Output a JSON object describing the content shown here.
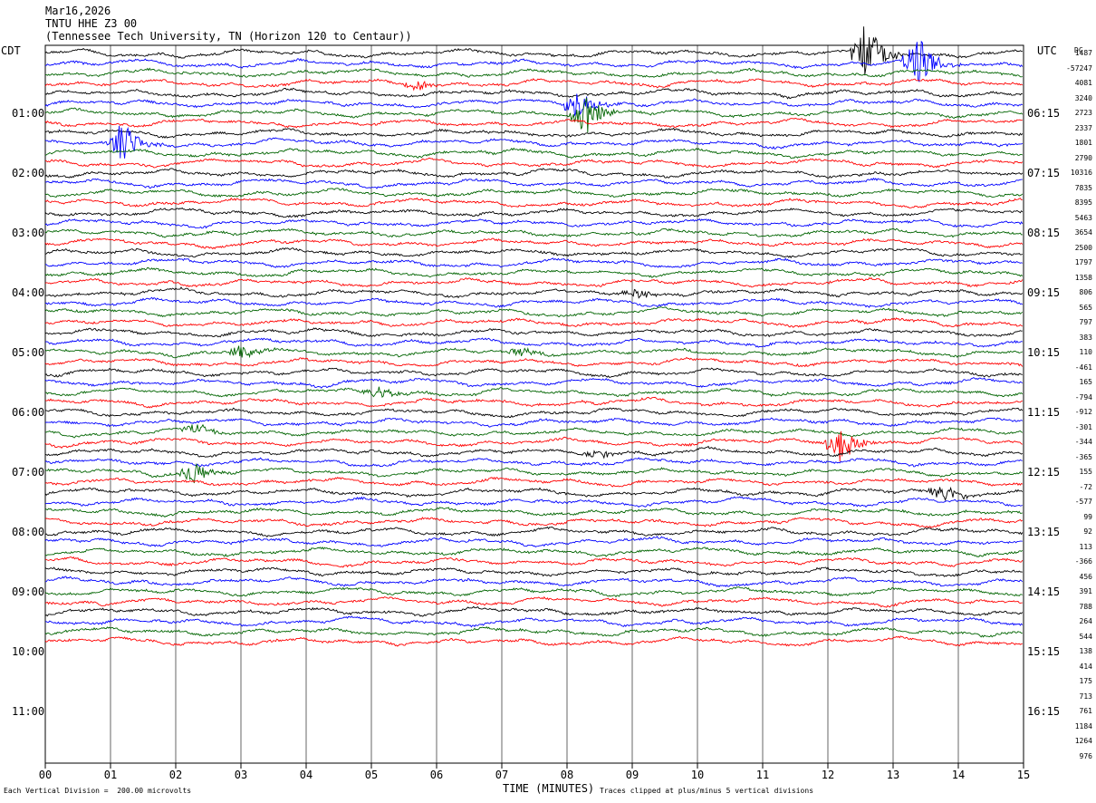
{
  "header": {
    "date": "Mar16,2026",
    "station": "TNTU HHE Z3 00",
    "location": "(Tennessee Tech University, TN (Horizon 120 to Centaur))"
  },
  "axis_labels": {
    "left_tz": "CDT",
    "right_tz": "UTC",
    "dc_header": "DC",
    "xlabel": "TIME (MINUTES)"
  },
  "footer": {
    "scale_note": "Each Vertical Division =  200.00 microvolts",
    "clip_note": "Traces clipped at plus/minus 5 vertical divisions"
  },
  "chart_data": {
    "type": "line",
    "x_ticks": [
      "00",
      "01",
      "02",
      "03",
      "04",
      "05",
      "06",
      "07",
      "08",
      "09",
      "10",
      "11",
      "12",
      "13",
      "14",
      "15"
    ],
    "xlim": [
      0,
      15
    ],
    "row_count": 60,
    "minutes_per_row": 15,
    "color_cycle": [
      "#000000",
      "#0000ff",
      "#006400",
      "#ff0000"
    ],
    "left_hour_labels": [
      "01:00",
      "02:00",
      "03:00",
      "04:00",
      "05:00",
      "06:00",
      "07:00",
      "08:00",
      "09:00",
      "10:00",
      "11:00"
    ],
    "right_hour_labels": [
      "06:15",
      "07:15",
      "08:15",
      "09:15",
      "10:15",
      "11:15",
      "12:15",
      "13:15",
      "14:15",
      "15:15",
      "16:15"
    ],
    "dc_offsets": [
      "1487",
      "-57247",
      "4081",
      "3240",
      "2723",
      "2337",
      "1801",
      "2790",
      "10316",
      "7835",
      "8395",
      "5463",
      "3654",
      "2500",
      "1797",
      "1358",
      "806",
      "565",
      "797",
      "383",
      "110",
      "-461",
      "165",
      "-794",
      "-912",
      "-301",
      "-344",
      "-365",
      "155",
      "-72",
      "-577",
      "99",
      "92",
      "113",
      "-366",
      "456",
      "391",
      "788",
      "264",
      "544",
      "138",
      "414",
      "175",
      "713",
      "761",
      "1184",
      "1264",
      "976"
    ],
    "events": [
      {
        "row": 0,
        "minute": 12.5,
        "amplitude": 6
      },
      {
        "row": 1,
        "minute": 13.3,
        "amplitude": 5
      },
      {
        "row": 3,
        "minute": 5.6,
        "amplitude": 1.5
      },
      {
        "row": 5,
        "minute": 8.1,
        "amplitude": 3
      },
      {
        "row": 6,
        "minute": 8.2,
        "amplitude": 4
      },
      {
        "row": 9,
        "minute": 1.1,
        "amplitude": 5
      },
      {
        "row": 24,
        "minute": 9.0,
        "amplitude": 1
      },
      {
        "row": 30,
        "minute": 2.9,
        "amplitude": 1.5
      },
      {
        "row": 30,
        "minute": 7.2,
        "amplitude": 1
      },
      {
        "row": 34,
        "minute": 5.0,
        "amplitude": 1.5
      },
      {
        "row": 38,
        "minute": 2.2,
        "amplitude": 1.2
      },
      {
        "row": 39,
        "minute": 12.1,
        "amplitude": 4
      },
      {
        "row": 40,
        "minute": 8.4,
        "amplitude": 1
      },
      {
        "row": 42,
        "minute": 2.2,
        "amplitude": 2.5
      },
      {
        "row": 44,
        "minute": 13.7,
        "amplitude": 2
      }
    ]
  }
}
